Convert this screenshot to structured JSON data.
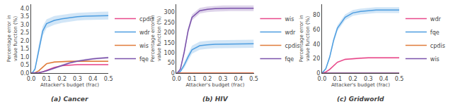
{
  "chart_data": [
    {
      "type": "line",
      "title": "(a) Cancer",
      "x_label": "Attacker's budget (frac)",
      "y_label": "Percentage error in value function (%)",
      "x": [
        0.0,
        0.01,
        0.025,
        0.05,
        0.075,
        0.1,
        0.15,
        0.2,
        0.25,
        0.3,
        0.35,
        0.4,
        0.45,
        0.5
      ],
      "xlim": [
        0.0,
        0.5
      ],
      "xticks": [
        {
          "value": 0,
          "label": "0.0"
        },
        0.1,
        0.2,
        0.3,
        0.4,
        0.5
      ],
      "ylim": [
        0.0,
        4.25
      ],
      "yticks": [
        {
          "value": 0,
          "label": "0.0"
        },
        0.5,
        {
          "value": 1,
          "label": "1.0"
        },
        1.5,
        {
          "value": 2,
          "label": "2.0"
        },
        2.5,
        {
          "value": 3,
          "label": "3.0"
        },
        3.5,
        {
          "value": 4,
          "label": "4.0"
        }
      ],
      "grid": false,
      "legend": "right",
      "series": [
        {
          "name": "cpdis",
          "color": "#e8488a",
          "values": [
            0.0,
            0.0,
            0.0,
            0.02,
            0.08,
            0.18,
            0.35,
            0.46,
            0.5,
            0.52,
            0.52,
            0.52,
            0.52,
            0.52
          ],
          "lower": [
            0.0,
            0.0,
            0.0,
            0.01,
            0.06,
            0.15,
            0.31,
            0.43,
            0.47,
            0.49,
            0.49,
            0.49,
            0.49,
            0.49
          ],
          "upper": [
            0.0,
            0.0,
            0.0,
            0.03,
            0.1,
            0.21,
            0.39,
            0.49,
            0.53,
            0.55,
            0.55,
            0.55,
            0.55,
            0.55
          ]
        },
        {
          "name": "wdr",
          "color": "#4d9de0",
          "values": [
            0.0,
            0.05,
            0.25,
            1.5,
            2.6,
            3.05,
            3.25,
            3.35,
            3.42,
            3.48,
            3.51,
            3.53,
            3.54,
            3.55
          ],
          "lower": [
            0.0,
            0.02,
            0.15,
            1.2,
            2.3,
            2.78,
            2.98,
            3.1,
            3.18,
            3.24,
            3.27,
            3.29,
            3.3,
            3.31
          ],
          "upper": [
            0.0,
            0.08,
            0.35,
            1.8,
            2.9,
            3.32,
            3.52,
            3.6,
            3.66,
            3.72,
            3.75,
            3.77,
            3.78,
            3.79
          ]
        },
        {
          "name": "wis",
          "color": "#e07b39",
          "values": [
            0.0,
            0.0,
            0.02,
            0.15,
            0.38,
            0.58,
            0.68,
            0.72,
            0.73,
            0.73,
            0.73,
            0.73,
            0.73,
            0.73
          ],
          "lower": [
            0.0,
            0.0,
            0.01,
            0.12,
            0.34,
            0.53,
            0.63,
            0.67,
            0.68,
            0.68,
            0.68,
            0.68,
            0.68,
            0.68
          ],
          "upper": [
            0.0,
            0.0,
            0.03,
            0.18,
            0.42,
            0.63,
            0.73,
            0.77,
            0.78,
            0.78,
            0.78,
            0.78,
            0.78,
            0.78
          ]
        },
        {
          "name": "fqe",
          "color": "#7b52ab",
          "values": [
            0.0,
            0.0,
            0.01,
            0.03,
            0.08,
            0.14,
            0.3,
            0.48,
            0.63,
            0.74,
            0.82,
            0.88,
            0.92,
            0.95
          ],
          "lower": [
            0.0,
            0.0,
            0.005,
            0.02,
            0.06,
            0.11,
            0.25,
            0.42,
            0.57,
            0.68,
            0.76,
            0.82,
            0.86,
            0.89
          ],
          "upper": [
            0.0,
            0.0,
            0.015,
            0.04,
            0.1,
            0.17,
            0.35,
            0.54,
            0.69,
            0.8,
            0.88,
            0.94,
            0.98,
            1.01
          ]
        }
      ]
    },
    {
      "type": "line",
      "title": "(b) HIV",
      "x_label": "Attacker's budget (frac)",
      "y_label": "Percentage error in value function (%)",
      "x": [
        0.0,
        0.01,
        0.025,
        0.05,
        0.075,
        0.1,
        0.15,
        0.2,
        0.25,
        0.3,
        0.35,
        0.4,
        0.45,
        0.5
      ],
      "xlim": [
        0.0,
        0.5
      ],
      "xticks": [
        {
          "value": 0,
          "label": "0.0"
        },
        0.1,
        0.2,
        0.3,
        0.4,
        0.5
      ],
      "ylim": [
        0,
        340
      ],
      "yticks": [
        0,
        50,
        100,
        150,
        200,
        250,
        300
      ],
      "grid": false,
      "legend": "right",
      "series": [
        {
          "name": "wis",
          "color": "#e8488a",
          "values": [
            0.0,
            0.0,
            0.0,
            0.0,
            0.0,
            0.0,
            0.0,
            0.0,
            0.0,
            0.0,
            0.0,
            0.0,
            0.0,
            0.0
          ],
          "lower": [
            0.0,
            0.0,
            0.0,
            0.0,
            0.0,
            0.0,
            0.0,
            0.0,
            0.0,
            0.0,
            0.0,
            0.0,
            0.0,
            0.0
          ],
          "upper": [
            0.0,
            0.0,
            0.0,
            0.0,
            0.0,
            0.0,
            0.0,
            0.0,
            0.0,
            0.0,
            0.0,
            0.0,
            0.0,
            0.0
          ]
        },
        {
          "name": "wdr",
          "color": "#4d9de0",
          "values": [
            0.0,
            2,
            8,
            40,
            80,
            115,
            135,
            140,
            142,
            143,
            144,
            144,
            145,
            145
          ],
          "lower": [
            0.0,
            0,
            4,
            25,
            62,
            95,
            115,
            120,
            122,
            123,
            124,
            124,
            125,
            125
          ],
          "upper": [
            0.0,
            4,
            12,
            55,
            98,
            135,
            155,
            160,
            162,
            163,
            164,
            164,
            165,
            165
          ]
        },
        {
          "name": "cpdis",
          "color": "#e07b39",
          "values": [
            0.0,
            0.0,
            0.0,
            0.0,
            0.0,
            0.0,
            0.0,
            0.0,
            0.0,
            0.0,
            0.0,
            0.0,
            0.0,
            0.0
          ],
          "lower": [
            0.0,
            0.0,
            0.0,
            0.0,
            0.0,
            0.0,
            0.0,
            0.0,
            0.0,
            0.0,
            0.0,
            0.0,
            0.0,
            0.0
          ],
          "upper": [
            0.0,
            0.0,
            0.0,
            0.0,
            0.0,
            0.0,
            0.0,
            0.0,
            0.0,
            0.0,
            0.0,
            0.0,
            0.0,
            0.0
          ]
        },
        {
          "name": "fqe",
          "color": "#7b52ab",
          "values": [
            0.0,
            5,
            20,
            105,
            210,
            275,
            308,
            315,
            318,
            320,
            320,
            320,
            320,
            320
          ],
          "lower": [
            0.0,
            3,
            14,
            90,
            195,
            260,
            294,
            301,
            304,
            306,
            306,
            306,
            306,
            306
          ],
          "upper": [
            0.0,
            7,
            26,
            120,
            225,
            290,
            322,
            329,
            332,
            334,
            334,
            334,
            334,
            334
          ]
        }
      ]
    },
    {
      "type": "line",
      "title": "(c) Gridworld",
      "x_label": "Attacker's budget (frac)",
      "y_label": "Percentage error in value function (%)",
      "x": [
        0.0,
        0.01,
        0.025,
        0.05,
        0.075,
        0.1,
        0.15,
        0.2,
        0.25,
        0.3,
        0.35,
        0.4,
        0.45,
        0.5
      ],
      "xlim": [
        0.0,
        0.5
      ],
      "xticks": [
        {
          "value": 0,
          "label": "0.0"
        },
        0.1,
        0.2,
        0.3,
        0.4,
        0.5
      ],
      "ylim": [
        0,
        95
      ],
      "yticks": [
        0,
        20,
        40,
        60,
        80
      ],
      "grid": false,
      "legend": "right",
      "series": [
        {
          "name": "wdr",
          "color": "#e8488a",
          "values": [
            0.0,
            0.5,
            1.5,
            5,
            10,
            15,
            19,
            20,
            20.5,
            21,
            21,
            21,
            21,
            21
          ],
          "lower": [
            0.0,
            0.3,
            1.0,
            4,
            9,
            14,
            18,
            19,
            19.5,
            20,
            20,
            20,
            20,
            20
          ],
          "upper": [
            0.0,
            0.7,
            2.0,
            6,
            11,
            16,
            20,
            21,
            21.5,
            22,
            22,
            22,
            22,
            22
          ]
        },
        {
          "name": "fqe",
          "color": "#4d9de0",
          "values": [
            0.0,
            2,
            6,
            22,
            45,
            62,
            77,
            83,
            85,
            86,
            87,
            87,
            87,
            87
          ],
          "lower": [
            0.0,
            1.5,
            5,
            19,
            41,
            58,
            73,
            79,
            81,
            82,
            83,
            83,
            83,
            83
          ],
          "upper": [
            0.0,
            2.5,
            7,
            25,
            49,
            66,
            81,
            87,
            89,
            90,
            91,
            91,
            91,
            91
          ]
        },
        {
          "name": "cpdis",
          "color": "#e07b39",
          "values": [
            0.0,
            0.0,
            0.0,
            0.0,
            0.0,
            0.0,
            0.0,
            0.0,
            0.0,
            0.0,
            0.0,
            0.0,
            0.0,
            0.0
          ],
          "lower": [
            0.0,
            0.0,
            0.0,
            0.0,
            0.0,
            0.0,
            0.0,
            0.0,
            0.0,
            0.0,
            0.0,
            0.0,
            0.0,
            0.0
          ],
          "upper": [
            0.0,
            0.0,
            0.0,
            0.0,
            0.0,
            0.0,
            0.0,
            0.0,
            0.0,
            0.0,
            0.0,
            0.0,
            0.0,
            0.0
          ]
        },
        {
          "name": "wis",
          "color": "#7b52ab",
          "values": [
            0.0,
            0.0,
            0.0,
            0.0,
            0.0,
            0.0,
            0.0,
            0.0,
            0.0,
            0.0,
            0.0,
            0.0,
            0.0,
            0.0
          ],
          "lower": [
            0.0,
            0.0,
            0.0,
            0.0,
            0.0,
            0.0,
            0.0,
            0.0,
            0.0,
            0.0,
            0.0,
            0.0,
            0.0,
            0.0
          ],
          "upper": [
            0.0,
            0.0,
            0.0,
            0.0,
            0.0,
            0.0,
            0.0,
            0.0,
            0.0,
            0.0,
            0.0,
            0.0,
            0.0,
            0.0
          ]
        }
      ]
    }
  ]
}
